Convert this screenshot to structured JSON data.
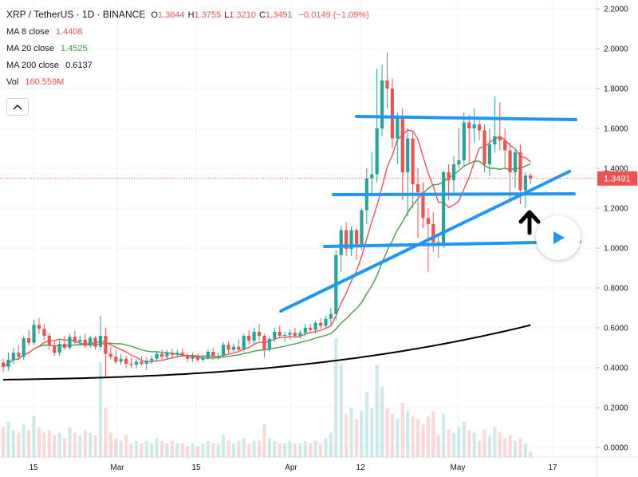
{
  "legend": {
    "symbol": "XRP / TetherUS · 1D · BINANCE",
    "ohlc": [
      {
        "key": "O",
        "value": "1.3644"
      },
      {
        "key": "H",
        "value": "1.3755"
      },
      {
        "key": "L",
        "value": "1.3210"
      },
      {
        "key": "C",
        "value": "1.3491"
      }
    ],
    "change": "−0.0149 (−1.09%)",
    "ma8_label": "MA 8 close",
    "ma8_value": "1.4408",
    "ma20_label": "MA 20 close",
    "ma20_value": "1.4525",
    "ma200_label": "MA 200 close",
    "ma200_value": "0.6137",
    "vol_label": "Vol",
    "vol_value": "160.559M"
  },
  "colors": {
    "up": "#26a69a",
    "down": "#ef5350",
    "ma8": "#ef5350",
    "ma20": "#43a047",
    "ma200": "#000000",
    "trendline": "#2196f3",
    "current_price_bg": "#ef5350"
  },
  "chart_data": {
    "type": "candlestick",
    "symbol": "XRP / TetherUS",
    "interval": "1D",
    "exchange": "BINANCE",
    "price_ticks": [
      "2.2000",
      "2.0000",
      "1.8000",
      "1.6000",
      "1.4000",
      "1.2000",
      "1.0000",
      "0.8000",
      "0.6000",
      "0.4000",
      "0.2000",
      "0.0000"
    ],
    "time_ticks": [
      "15",
      "Mar",
      "15",
      "Apr",
      "12",
      "May",
      "17"
    ],
    "ylim": [
      -0.05,
      2.22
    ],
    "current_price": "1.3491",
    "candles": [
      [
        0.426,
        0.445,
        0.378,
        0.405
      ],
      [
        0.405,
        0.478,
        0.385,
        0.44
      ],
      [
        0.44,
        0.5,
        0.418,
        0.475
      ],
      [
        0.475,
        0.515,
        0.44,
        0.455
      ],
      [
        0.455,
        0.56,
        0.44,
        0.548
      ],
      [
        0.548,
        0.59,
        0.51,
        0.525
      ],
      [
        0.525,
        0.64,
        0.515,
        0.615
      ],
      [
        0.615,
        0.65,
        0.57,
        0.595
      ],
      [
        0.595,
        0.62,
        0.54,
        0.56
      ],
      [
        0.56,
        0.575,
        0.49,
        0.51
      ],
      [
        0.51,
        0.53,
        0.46,
        0.475
      ],
      [
        0.475,
        0.54,
        0.46,
        0.52
      ],
      [
        0.52,
        0.56,
        0.49,
        0.5
      ],
      [
        0.5,
        0.57,
        0.49,
        0.555
      ],
      [
        0.555,
        0.585,
        0.52,
        0.53
      ],
      [
        0.53,
        0.56,
        0.51,
        0.54
      ],
      [
        0.54,
        0.57,
        0.5,
        0.51
      ],
      [
        0.51,
        0.56,
        0.5,
        0.55
      ],
      [
        0.55,
        0.56,
        0.49,
        0.505
      ],
      [
        0.505,
        0.66,
        0.49,
        0.56
      ],
      [
        0.56,
        0.6,
        0.355,
        0.47
      ],
      [
        0.47,
        0.505,
        0.44,
        0.455
      ],
      [
        0.455,
        0.49,
        0.42,
        0.43
      ],
      [
        0.43,
        0.47,
        0.415,
        0.445
      ],
      [
        0.445,
        0.46,
        0.4,
        0.42
      ],
      [
        0.42,
        0.45,
        0.4,
        0.415
      ],
      [
        0.415,
        0.445,
        0.395,
        0.43
      ],
      [
        0.43,
        0.46,
        0.41,
        0.42
      ],
      [
        0.42,
        0.45,
        0.39,
        0.435
      ],
      [
        0.435,
        0.46,
        0.42,
        0.445
      ],
      [
        0.445,
        0.485,
        0.435,
        0.47
      ],
      [
        0.47,
        0.49,
        0.44,
        0.455
      ],
      [
        0.455,
        0.49,
        0.44,
        0.475
      ],
      [
        0.475,
        0.495,
        0.45,
        0.465
      ],
      [
        0.465,
        0.49,
        0.45,
        0.475
      ],
      [
        0.475,
        0.495,
        0.455,
        0.46
      ],
      [
        0.46,
        0.47,
        0.43,
        0.445
      ],
      [
        0.445,
        0.475,
        0.43,
        0.455
      ],
      [
        0.455,
        0.47,
        0.43,
        0.44
      ],
      [
        0.44,
        0.465,
        0.43,
        0.45
      ],
      [
        0.45,
        0.49,
        0.44,
        0.48
      ],
      [
        0.48,
        0.5,
        0.44,
        0.455
      ],
      [
        0.455,
        0.475,
        0.44,
        0.46
      ],
      [
        0.46,
        0.53,
        0.45,
        0.515
      ],
      [
        0.515,
        0.53,
        0.47,
        0.49
      ],
      [
        0.49,
        0.52,
        0.48,
        0.505
      ],
      [
        0.505,
        0.54,
        0.485,
        0.49
      ],
      [
        0.49,
        0.57,
        0.48,
        0.56
      ],
      [
        0.56,
        0.59,
        0.52,
        0.535
      ],
      [
        0.535,
        0.6,
        0.52,
        0.58
      ],
      [
        0.58,
        0.62,
        0.54,
        0.56
      ],
      [
        0.56,
        0.57,
        0.45,
        0.49
      ],
      [
        0.49,
        0.56,
        0.48,
        0.545
      ],
      [
        0.545,
        0.6,
        0.53,
        0.58
      ],
      [
        0.58,
        0.61,
        0.55,
        0.56
      ],
      [
        0.56,
        0.58,
        0.53,
        0.565
      ],
      [
        0.565,
        0.59,
        0.54,
        0.575
      ],
      [
        0.575,
        0.6,
        0.55,
        0.56
      ],
      [
        0.56,
        0.59,
        0.545,
        0.575
      ],
      [
        0.575,
        0.62,
        0.56,
        0.6
      ],
      [
        0.6,
        0.62,
        0.575,
        0.59
      ],
      [
        0.59,
        0.635,
        0.57,
        0.625
      ],
      [
        0.625,
        0.65,
        0.595,
        0.61
      ],
      [
        0.61,
        0.66,
        0.6,
        0.645
      ],
      [
        0.645,
        0.7,
        0.615,
        0.67
      ],
      [
        0.67,
        0.99,
        0.64,
        0.965
      ],
      [
        0.965,
        1.11,
        0.88,
        1.09
      ],
      [
        1.09,
        1.13,
        0.96,
        0.995
      ],
      [
        0.995,
        1.11,
        0.96,
        1.09
      ],
      [
        1.09,
        1.1,
        0.94,
        1.02
      ],
      [
        1.02,
        1.2,
        0.99,
        1.19
      ],
      [
        1.19,
        1.4,
        1.12,
        1.35
      ],
      [
        1.35,
        1.48,
        1.26,
        1.37
      ],
      [
        1.37,
        1.9,
        1.33,
        1.6
      ],
      [
        1.6,
        1.92,
        1.56,
        1.84
      ],
      [
        1.84,
        1.98,
        1.7,
        1.8
      ],
      [
        1.8,
        1.85,
        1.5,
        1.55
      ],
      [
        1.55,
        1.68,
        1.42,
        1.65
      ],
      [
        1.65,
        1.7,
        1.24,
        1.38
      ],
      [
        1.38,
        1.6,
        1.16,
        1.55
      ],
      [
        1.55,
        1.58,
        1.2,
        1.32
      ],
      [
        1.32,
        1.4,
        1.05,
        1.28
      ],
      [
        1.28,
        1.33,
        1.1,
        1.15
      ],
      [
        1.15,
        1.2,
        0.88,
        1.12
      ],
      [
        1.12,
        1.18,
        0.98,
        1.03
      ],
      [
        1.03,
        1.06,
        0.95,
        1.01
      ],
      [
        1.01,
        1.39,
        1.0,
        1.38
      ],
      [
        1.38,
        1.42,
        1.24,
        1.34
      ],
      [
        1.34,
        1.46,
        1.28,
        1.42
      ],
      [
        1.42,
        1.6,
        1.4,
        1.44
      ],
      [
        1.44,
        1.68,
        1.41,
        1.63
      ],
      [
        1.63,
        1.67,
        1.42,
        1.6
      ],
      [
        1.6,
        1.7,
        1.53,
        1.62
      ],
      [
        1.62,
        1.66,
        1.54,
        1.59
      ],
      [
        1.59,
        1.62,
        1.38,
        1.42
      ],
      [
        1.42,
        1.6,
        1.36,
        1.52
      ],
      [
        1.52,
        1.76,
        1.48,
        1.56
      ],
      [
        1.56,
        1.73,
        1.49,
        1.54
      ],
      [
        1.54,
        1.6,
        1.4,
        1.49
      ],
      [
        1.49,
        1.53,
        1.23,
        1.38
      ],
      [
        1.38,
        1.5,
        1.3,
        1.48
      ],
      [
        1.48,
        1.52,
        1.22,
        1.29
      ],
      [
        1.29,
        1.38,
        1.2,
        1.364
      ],
      [
        1.3644,
        1.3755,
        1.321,
        1.3491
      ]
    ],
    "volumes": [
      0.11,
      0.13,
      0.1,
      0.09,
      0.12,
      0.1,
      0.15,
      0.11,
      0.09,
      0.1,
      0.08,
      0.09,
      0.07,
      0.11,
      0.09,
      0.08,
      0.1,
      0.09,
      0.08,
      0.35,
      0.18,
      0.09,
      0.07,
      0.06,
      0.08,
      0.05,
      0.06,
      0.05,
      0.06,
      0.05,
      0.07,
      0.06,
      0.05,
      0.06,
      0.05,
      0.05,
      0.04,
      0.05,
      0.04,
      0.05,
      0.06,
      0.05,
      0.05,
      0.08,
      0.06,
      0.05,
      0.06,
      0.07,
      0.05,
      0.06,
      0.06,
      0.12,
      0.07,
      0.06,
      0.05,
      0.05,
      0.06,
      0.05,
      0.05,
      0.06,
      0.05,
      0.06,
      0.05,
      0.07,
      0.09,
      0.44,
      0.34,
      0.16,
      0.18,
      0.14,
      0.17,
      0.24,
      0.18,
      0.34,
      0.26,
      0.18,
      0.16,
      0.14,
      0.2,
      0.17,
      0.15,
      0.14,
      0.12,
      0.15,
      0.17,
      0.08,
      0.16,
      0.1,
      0.09,
      0.11,
      0.13,
      0.1,
      0.09,
      0.06,
      0.1,
      0.08,
      0.11,
      0.09,
      0.07,
      0.08,
      0.06,
      0.07,
      0.05,
      0.02
    ]
  }
}
